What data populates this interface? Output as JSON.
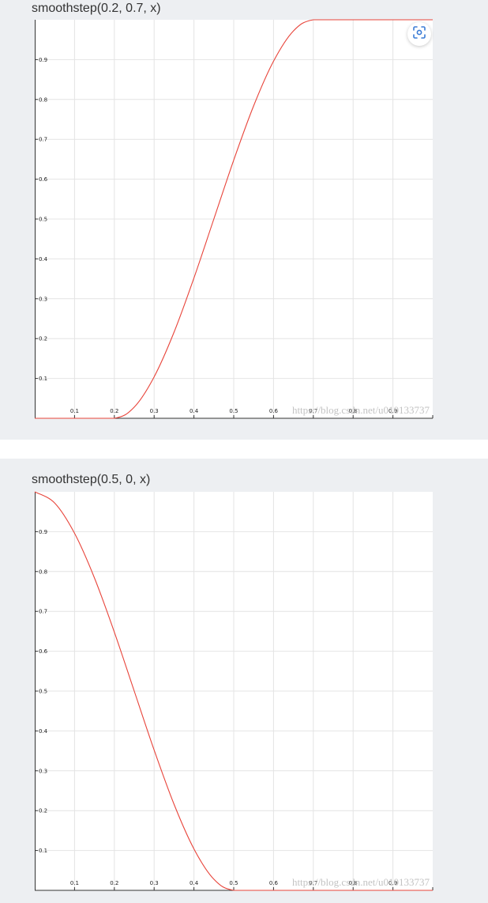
{
  "chart_data": [
    {
      "type": "line",
      "title": "smoothstep(0.2, 0.7, x)",
      "xlabel": "",
      "ylabel": "",
      "xlim": [
        0,
        1
      ],
      "ylim": [
        0,
        1
      ],
      "x_ticks": [
        "0.1",
        "0.2",
        "0.3",
        "0.4",
        "0.5",
        "0.6",
        "0.7",
        "0.8",
        "0.9"
      ],
      "y_ticks": [
        "0.1",
        "0.2",
        "0.3",
        "0.4",
        "0.5",
        "0.6",
        "0.7",
        "0.8",
        "0.9"
      ],
      "grid": true,
      "line_color": "#e8443a",
      "series": [
        {
          "x": [
            0,
            0.1,
            0.2,
            0.25,
            0.3,
            0.35,
            0.4,
            0.45,
            0.5,
            0.55,
            0.6,
            0.65,
            0.7,
            0.8,
            0.9,
            1.0
          ],
          "y": [
            0,
            0,
            0,
            0.028,
            0.104,
            0.216,
            0.352,
            0.5,
            0.648,
            0.784,
            0.896,
            0.972,
            1,
            1,
            1,
            1
          ]
        }
      ],
      "watermark": "https://blog.csdn.net/u010133737"
    },
    {
      "type": "line",
      "title": "smoothstep(0.5, 0, x)",
      "xlabel": "",
      "ylabel": "",
      "xlim": [
        0,
        1
      ],
      "ylim": [
        0,
        1
      ],
      "x_ticks": [
        "0.1",
        "0.2",
        "0.3",
        "0.4",
        "0.5",
        "0.6",
        "0.7",
        "0.8",
        "0.9"
      ],
      "y_ticks": [
        "0.1",
        "0.2",
        "0.3",
        "0.4",
        "0.5",
        "0.6",
        "0.7",
        "0.8",
        "0.9"
      ],
      "grid": true,
      "line_color": "#e8443a",
      "series": [
        {
          "x": [
            0,
            0.05,
            0.1,
            0.15,
            0.2,
            0.25,
            0.3,
            0.35,
            0.4,
            0.45,
            0.5,
            0.6,
            0.7,
            0.8,
            0.9,
            1.0
          ],
          "y": [
            1,
            0.972,
            0.896,
            0.784,
            0.648,
            0.5,
            0.352,
            0.216,
            0.104,
            0.028,
            0,
            0,
            0,
            0,
            0,
            0
          ]
        }
      ],
      "watermark": "https://blog.csdn.net/u010133737"
    }
  ],
  "screenshot_button": {
    "icon": "camera-scan-icon",
    "color": "#3a7bd5"
  }
}
